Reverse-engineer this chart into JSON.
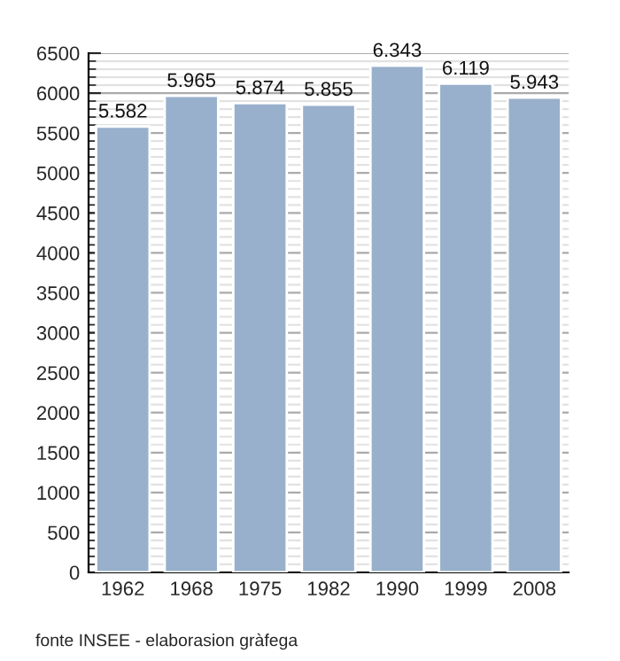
{
  "chart_data": {
    "type": "bar",
    "categories": [
      "1962",
      "1968",
      "1975",
      "1982",
      "1990",
      "1999",
      "2008"
    ],
    "values": [
      5582,
      5965,
      5874,
      5855,
      6343,
      6119,
      5943
    ],
    "value_labels": [
      "5.582",
      "5.965",
      "5.874",
      "5.855",
      "6.343",
      "6.119",
      "5.943"
    ],
    "color": "#98b0cb",
    "ylim": [
      0,
      6500
    ],
    "yticks": [
      0,
      500,
      1000,
      1500,
      2000,
      2500,
      3000,
      3500,
      4000,
      4500,
      5000,
      5500,
      6000,
      6500
    ],
    "grid": "y",
    "annotations": [
      "fonte INSEE - elaborasion gràfega"
    ]
  }
}
